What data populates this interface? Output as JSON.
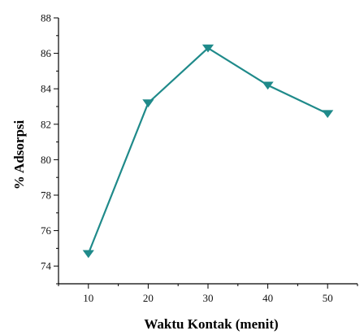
{
  "chart_data": {
    "type": "line",
    "title": "",
    "xlabel": "Waktu Kontak (menit)",
    "ylabel": "% Adsorpsi",
    "x": [
      10,
      20,
      30,
      40,
      50
    ],
    "series": [
      {
        "name": "",
        "values": [
          74.7,
          83.2,
          86.3,
          84.2,
          82.6
        ],
        "color": "#1f8a8a",
        "marker": "triangle-down"
      }
    ],
    "xlim": [
      5,
      55
    ],
    "ylim": [
      73,
      88
    ],
    "xticks": [
      "10",
      "20",
      "30",
      "40",
      "50"
    ],
    "yticks": [
      "74",
      "76",
      "78",
      "80",
      "82",
      "84",
      "86",
      "88"
    ],
    "grid": false,
    "legend": "none"
  }
}
